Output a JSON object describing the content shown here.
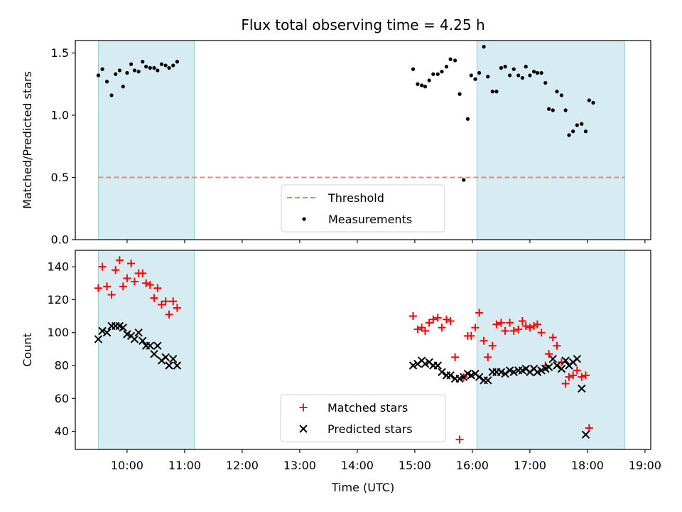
{
  "chart_data": [
    {
      "type": "scatter",
      "title": "Flux total observing time = 4.25 h",
      "ylabel": "Matched/Predicted stars",
      "xlabel": "",
      "xlim": [
        9.1,
        19.1
      ],
      "ylim": [
        0.0,
        1.6
      ],
      "yticks": [
        0.0,
        0.5,
        1.0,
        1.5
      ],
      "ytick_labels": [
        "0.0",
        "0.5",
        "1.0",
        "1.5"
      ],
      "shaded_intervals": [
        [
          9.5,
          11.17
        ],
        [
          16.08,
          18.65
        ]
      ],
      "legend_position": "bottom-center",
      "series": [
        {
          "name": "Threshold",
          "kind": "dashed-line",
          "color": "#f08080",
          "x": [
            9.5,
            18.65
          ],
          "y": [
            0.5,
            0.5
          ]
        },
        {
          "name": "Measurements",
          "kind": "points",
          "color": "#000000",
          "x": [
            9.5,
            9.57,
            9.65,
            9.73,
            9.8,
            9.87,
            9.93,
            10.0,
            10.07,
            10.13,
            10.2,
            10.27,
            10.33,
            10.4,
            10.47,
            10.53,
            10.6,
            10.67,
            10.73,
            10.8,
            10.87,
            10.93,
            11.0,
            11.07,
            11.15,
            14.97,
            15.05,
            15.12,
            15.18,
            15.25,
            15.32,
            15.4,
            15.47,
            15.55,
            15.62,
            15.7,
            15.78,
            15.85,
            15.92,
            15.98,
            16.05,
            16.12,
            16.2,
            16.27,
            16.35,
            16.42,
            16.5,
            16.57,
            16.65,
            16.72,
            16.8,
            16.87,
            16.93,
            17.0,
            17.07,
            17.13,
            17.2,
            17.27,
            17.33,
            17.4,
            17.47,
            17.55,
            17.62,
            17.68,
            17.75,
            17.82,
            17.9,
            17.97,
            18.03,
            18.1,
            18.17,
            18.23,
            18.3,
            18.37,
            18.43,
            18.5,
            18.57,
            18.65
          ],
          "y": [
            1.32,
            1.37,
            1.27,
            1.16,
            1.33,
            1.36,
            1.23,
            1.34,
            1.41,
            1.36,
            1.35,
            1.43,
            1.39,
            1.38,
            1.38,
            1.36,
            1.41,
            1.4,
            1.38,
            1.4,
            1.43,
            null,
            null,
            null,
            null,
            1.37,
            1.25,
            1.24,
            1.23,
            1.28,
            1.33,
            1.33,
            1.35,
            1.39,
            1.45,
            1.44,
            1.17,
            0.48,
            0.97,
            1.32,
            1.29,
            1.34,
            1.55,
            1.31,
            1.19,
            1.19,
            1.38,
            1.39,
            1.32,
            1.37,
            1.32,
            1.3,
            1.39,
            1.32,
            1.35,
            1.34,
            1.34,
            1.26,
            1.05,
            1.04,
            1.19,
            1.16,
            1.04,
            0.84,
            0.87,
            0.92,
            0.93,
            0.87,
            1.12,
            1.1,
            null,
            null,
            null,
            null,
            null,
            null,
            null,
            null
          ]
        }
      ]
    },
    {
      "type": "scatter",
      "title": "",
      "ylabel": "Count",
      "xlabel": "Time (UTC)",
      "xlim": [
        9.1,
        19.1
      ],
      "ylim": [
        29,
        150
      ],
      "yticks": [
        40,
        60,
        80,
        100,
        120,
        140
      ],
      "ytick_labels": [
        "40",
        "60",
        "80",
        "100",
        "120",
        "140"
      ],
      "xticks": [
        10,
        11,
        12,
        13,
        14,
        15,
        16,
        17,
        18,
        19
      ],
      "xtick_labels": [
        "10:00",
        "11:00",
        "12:00",
        "13:00",
        "14:00",
        "15:00",
        "16:00",
        "17:00",
        "18:00",
        "19:00"
      ],
      "shaded_intervals": [
        [
          9.5,
          11.17
        ],
        [
          16.08,
          18.65
        ]
      ],
      "legend_position": "bottom-center",
      "series": [
        {
          "name": "Matched stars",
          "marker": "plus",
          "color": "#ff0000",
          "x": [
            9.5,
            9.57,
            9.65,
            9.73,
            9.8,
            9.87,
            9.93,
            10.0,
            10.07,
            10.13,
            10.2,
            10.27,
            10.33,
            10.4,
            10.47,
            10.53,
            10.6,
            10.67,
            10.73,
            10.8,
            10.87,
            10.93,
            11.0,
            11.07,
            11.15,
            14.97,
            15.05,
            15.12,
            15.18,
            15.25,
            15.32,
            15.4,
            15.47,
            15.55,
            15.62,
            15.7,
            15.78,
            15.85,
            15.92,
            15.98,
            16.05,
            16.12,
            16.2,
            16.27,
            16.35,
            16.42,
            16.5,
            16.57,
            16.65,
            16.72,
            16.8,
            16.87,
            16.93,
            17.0,
            17.07,
            17.13,
            17.2,
            17.27,
            17.33,
            17.4,
            17.47,
            17.55,
            17.62,
            17.68,
            17.75,
            17.82,
            17.9,
            17.97,
            18.03,
            18.1,
            18.17,
            18.23,
            18.3,
            18.37,
            18.43,
            18.5,
            18.57,
            18.65
          ],
          "y": [
            127,
            140,
            128,
            123,
            138,
            144,
            128,
            133,
            142,
            131,
            136,
            136,
            130,
            129,
            121,
            127,
            117,
            119,
            111,
            119,
            115,
            null,
            null,
            null,
            null,
            110,
            102,
            103,
            101,
            106,
            108,
            109,
            103,
            108,
            107,
            85,
            35,
            73,
            98,
            98,
            103,
            112,
            95,
            85,
            92,
            105,
            106,
            101,
            106,
            101,
            102,
            107,
            104,
            103,
            104,
            105,
            100,
            80,
            87,
            97,
            92,
            82,
            69,
            73,
            74,
            77,
            73,
            74,
            42,
            null,
            null,
            null,
            null,
            null,
            null,
            null,
            null,
            null
          ]
        },
        {
          "name": "Predicted stars",
          "marker": "x",
          "color": "#000000",
          "x": [
            9.5,
            9.57,
            9.65,
            9.73,
            9.8,
            9.87,
            9.93,
            10.0,
            10.07,
            10.13,
            10.2,
            10.27,
            10.33,
            10.4,
            10.47,
            10.53,
            10.6,
            10.67,
            10.73,
            10.8,
            10.87,
            10.93,
            11.0,
            11.07,
            11.15,
            14.97,
            15.05,
            15.12,
            15.18,
            15.25,
            15.32,
            15.4,
            15.47,
            15.55,
            15.62,
            15.7,
            15.78,
            15.85,
            15.92,
            15.98,
            16.05,
            16.12,
            16.2,
            16.27,
            16.35,
            16.42,
            16.5,
            16.57,
            16.65,
            16.72,
            16.8,
            16.87,
            16.93,
            17.0,
            17.07,
            17.13,
            17.2,
            17.27,
            17.33,
            17.4,
            17.47,
            17.55,
            17.62,
            17.68,
            17.75,
            17.82,
            17.9,
            17.97,
            18.03,
            18.1,
            18.17,
            18.23,
            18.3,
            18.37,
            18.43,
            18.5,
            18.57,
            18.65
          ],
          "y": [
            96,
            101,
            100,
            104,
            104,
            104,
            103,
            99,
            98,
            96,
            100,
            95,
            92,
            92,
            87,
            92,
            83,
            85,
            80,
            84,
            80,
            null,
            null,
            null,
            null,
            80,
            81,
            83,
            81,
            82,
            80,
            80,
            76,
            74,
            74,
            72,
            72,
            73,
            75,
            74,
            75,
            73,
            71,
            71,
            76,
            76,
            76,
            75,
            77,
            76,
            77,
            77,
            78,
            76,
            78,
            76,
            77,
            78,
            79,
            84,
            80,
            78,
            83,
            80,
            82,
            84,
            66,
            38,
            null,
            null,
            null,
            null,
            null,
            null,
            null,
            null,
            null,
            null
          ]
        }
      ]
    }
  ]
}
